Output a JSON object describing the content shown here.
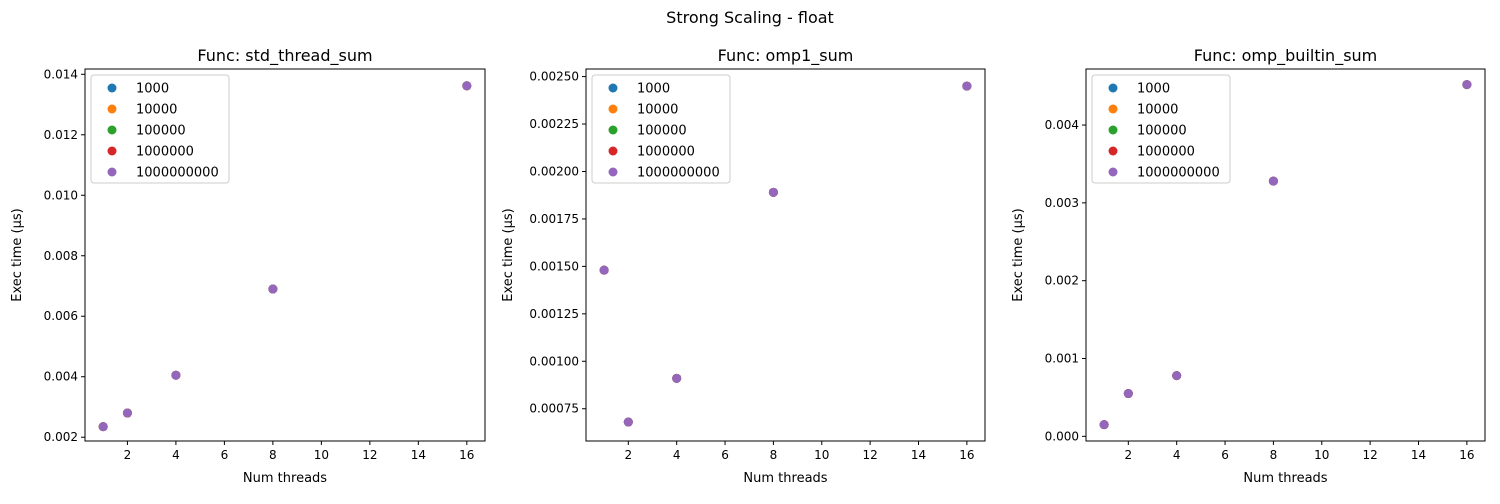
{
  "suptitle": "Strong Scaling - float",
  "legend": {
    "placement": "upper-left",
    "entries": [
      "1000",
      "10000",
      "100000",
      "1000000",
      "1000000000"
    ],
    "colors": [
      "#1f77b4",
      "#ff7f0e",
      "#2ca02c",
      "#d62728",
      "#9467bd"
    ]
  },
  "chart_data": [
    {
      "type": "scatter",
      "title": "Func: std_thread_sum",
      "xlabel": "Num threads",
      "ylabel": "Exec time (µs)",
      "xlim": [
        0.25,
        16.75
      ],
      "ylim": [
        0.001875,
        0.014175
      ],
      "xticks": [
        2,
        4,
        6,
        8,
        10,
        12,
        14,
        16
      ],
      "xtick_labels": [
        "2",
        "4",
        "6",
        "8",
        "10",
        "12",
        "14",
        "16"
      ],
      "yticks": [
        0.002,
        0.004,
        0.006,
        0.008,
        0.01,
        0.012,
        0.014
      ],
      "ytick_labels": [
        "0.002",
        "0.004",
        "0.006",
        "0.008",
        "0.010",
        "0.012",
        "0.014"
      ],
      "x": [
        1,
        2,
        4,
        8,
        16
      ],
      "series": [
        {
          "name": "1000",
          "values": [
            0.00235,
            0.0028,
            0.00405,
            0.0069,
            0.01362
          ]
        },
        {
          "name": "10000",
          "values": [
            0.00235,
            0.0028,
            0.00405,
            0.0069,
            0.01362
          ]
        },
        {
          "name": "100000",
          "values": [
            0.00235,
            0.0028,
            0.00405,
            0.0069,
            0.01362
          ]
        },
        {
          "name": "1000000",
          "values": [
            0.00235,
            0.0028,
            0.00405,
            0.0069,
            0.01362
          ]
        },
        {
          "name": "1000000000",
          "values": [
            0.00235,
            0.0028,
            0.00405,
            0.0069,
            0.01362
          ]
        }
      ]
    },
    {
      "type": "scatter",
      "title": "Func: omp1_sum",
      "xlabel": "Num threads",
      "ylabel": "Exec time (µs)",
      "xlim": [
        0.25,
        16.75
      ],
      "ylim": [
        0.00058,
        0.00254
      ],
      "xticks": [
        2,
        4,
        6,
        8,
        10,
        12,
        14,
        16
      ],
      "xtick_labels": [
        "2",
        "4",
        "6",
        "8",
        "10",
        "12",
        "14",
        "16"
      ],
      "yticks": [
        0.00075,
        0.001,
        0.00125,
        0.0015,
        0.00175,
        0.002,
        0.00225,
        0.0025
      ],
      "ytick_labels": [
        "0.00075",
        "0.00100",
        "0.00125",
        "0.00150",
        "0.00175",
        "0.00200",
        "0.00225",
        "0.00250"
      ],
      "x": [
        1,
        2,
        4,
        8,
        16
      ],
      "series": [
        {
          "name": "1000",
          "values": [
            0.00148,
            0.00068,
            0.00091,
            0.00189,
            0.00245
          ]
        },
        {
          "name": "10000",
          "values": [
            0.00148,
            0.00068,
            0.00091,
            0.00189,
            0.00245
          ]
        },
        {
          "name": "100000",
          "values": [
            0.00148,
            0.00068,
            0.00091,
            0.00189,
            0.00245
          ]
        },
        {
          "name": "1000000",
          "values": [
            0.00148,
            0.00068,
            0.00091,
            0.00189,
            0.00245
          ]
        },
        {
          "name": "1000000000",
          "values": [
            0.00148,
            0.00068,
            0.00091,
            0.00189,
            0.00245
          ]
        }
      ]
    },
    {
      "type": "scatter",
      "title": "Func: omp_builtin_sum",
      "xlabel": "Num threads",
      "ylabel": "Exec time (µs)",
      "xlim": [
        0.25,
        16.75
      ],
      "ylim": [
        -6e-05,
        0.00472
      ],
      "xticks": [
        2,
        4,
        6,
        8,
        10,
        12,
        14,
        16
      ],
      "xtick_labels": [
        "2",
        "4",
        "6",
        "8",
        "10",
        "12",
        "14",
        "16"
      ],
      "yticks": [
        0.0,
        0.001,
        0.002,
        0.003,
        0.004
      ],
      "ytick_labels": [
        "0.000",
        "0.001",
        "0.002",
        "0.003",
        "0.004"
      ],
      "x": [
        1,
        2,
        4,
        8,
        16
      ],
      "series": [
        {
          "name": "1000",
          "values": [
            0.00015,
            0.00055,
            0.00078,
            0.00328,
            0.00452
          ]
        },
        {
          "name": "10000",
          "values": [
            0.00015,
            0.00055,
            0.00078,
            0.00328,
            0.00452
          ]
        },
        {
          "name": "100000",
          "values": [
            0.00015,
            0.00055,
            0.00078,
            0.00328,
            0.00452
          ]
        },
        {
          "name": "1000000",
          "values": [
            0.00015,
            0.00055,
            0.00078,
            0.00328,
            0.00452
          ]
        },
        {
          "name": "1000000000",
          "values": [
            0.00015,
            0.00055,
            0.00078,
            0.00328,
            0.00452
          ]
        }
      ]
    }
  ]
}
